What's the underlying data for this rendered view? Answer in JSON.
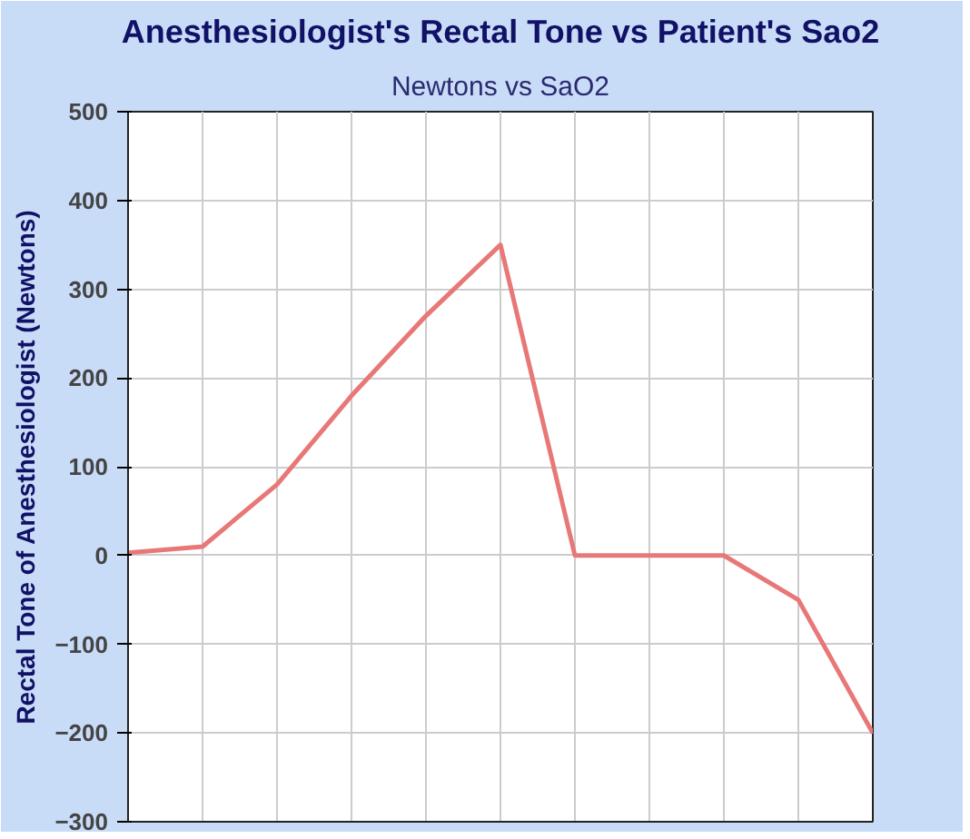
{
  "chart_data": {
    "type": "line",
    "title": "Anesthesiologist's Rectal Tone vs Patient's Sao2",
    "subtitle": "Newtons vs SaO2",
    "ylabel": "Rectal Tone of Anesthesiologist (Newtons)",
    "categories": [
      null,
      null,
      null,
      null,
      null,
      null,
      null,
      null,
      null,
      null,
      null
    ],
    "series": [
      {
        "color": "#e87878",
        "values": [
          3,
          10,
          80,
          180,
          270,
          350,
          0,
          0,
          0,
          -50,
          -200
        ]
      }
    ],
    "ylim": [
      -300,
      500
    ],
    "yticks": [
      -300,
      -200,
      -100,
      0,
      100,
      200,
      300,
      400,
      500
    ],
    "grid": true,
    "tick_labels": "y",
    "marker": "none",
    "line_style": "solid"
  }
}
